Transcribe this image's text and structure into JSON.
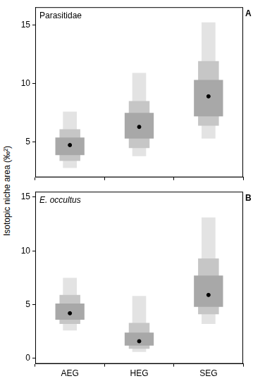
{
  "ylabel": "Isotopic niche area (‰²)",
  "chart_data": [
    {
      "type": "bar",
      "panel": "A",
      "title": "Parasitidae",
      "categories": [
        null,
        null,
        null
      ],
      "tick_labels": "y",
      "ylim": [
        2,
        16.5
      ],
      "yticks": [
        5,
        10,
        15
      ],
      "grid": false,
      "legend": "none",
      "series": [
        {
          "type": "bar",
          "color": "#e3e3e3",
          "values": [
            [
              2.8,
              7.6
            ],
            [
              3.8,
              10.9
            ],
            [
              5.3,
              15.2
            ]
          ]
        },
        {
          "type": "bar",
          "color": "#c6c6c6",
          "values": [
            [
              3.4,
              6.1
            ],
            [
              4.5,
              8.5
            ],
            [
              6.4,
              11.9
            ]
          ]
        },
        {
          "type": "bar",
          "color": "#a8a8a8",
          "values": [
            [
              3.9,
              5.4
            ],
            [
              5.3,
              7.5
            ],
            [
              7.2,
              10.3
            ]
          ]
        },
        {
          "type": "scatter",
          "marker": "circle",
          "color": "#000000",
          "values": [
            4.75,
            6.3,
            8.9
          ]
        }
      ]
    },
    {
      "type": "bar",
      "panel": "B",
      "title": "E. occultus",
      "categories": [
        "AEG",
        "HEG",
        "SEG"
      ],
      "ylim": [
        -0.5,
        15.5
      ],
      "yticks": [
        0,
        5,
        10,
        15
      ],
      "grid": false,
      "legend": "none",
      "series": [
        {
          "type": "bar",
          "color": "#e3e3e3",
          "values": [
            [
              2.6,
              7.5
            ],
            [
              0.6,
              5.8
            ],
            [
              3.2,
              13.1
            ]
          ]
        },
        {
          "type": "bar",
          "color": "#c6c6c6",
          "values": [
            [
              3.2,
              5.9
            ],
            [
              0.9,
              3.3
            ],
            [
              4.1,
              9.3
            ]
          ]
        },
        {
          "type": "bar",
          "color": "#a8a8a8",
          "values": [
            [
              3.6,
              5.1
            ],
            [
              1.2,
              2.4
            ],
            [
              4.8,
              7.7
            ]
          ]
        },
        {
          "type": "scatter",
          "marker": "circle",
          "color": "#000000",
          "values": [
            4.2,
            1.6,
            5.9
          ]
        }
      ]
    }
  ]
}
